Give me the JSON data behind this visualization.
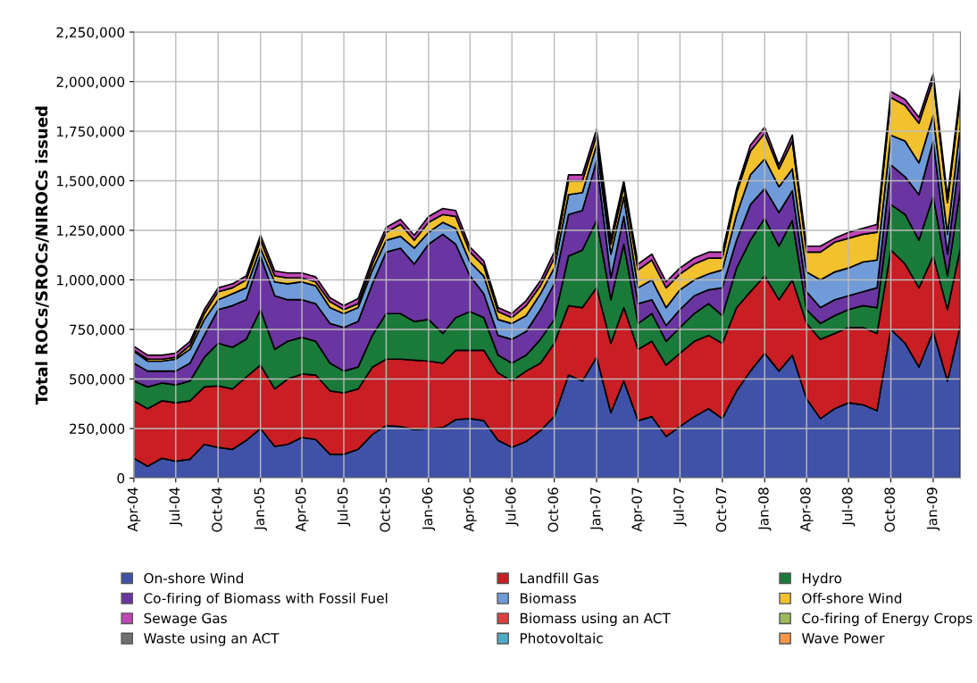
{
  "chart_data": {
    "type": "area",
    "stacked": true,
    "ylabel": "Total ROCs/SROCs/NIROCs issued",
    "x": [
      "2004-04",
      "2004-05",
      "2004-06",
      "2004-07",
      "2004-08",
      "2004-09",
      "2004-10",
      "2004-11",
      "2004-12",
      "2005-01",
      "2005-02",
      "2005-03",
      "2005-04",
      "2005-05",
      "2005-06",
      "2005-07",
      "2005-08",
      "2005-09",
      "2005-10",
      "2005-11",
      "2005-12",
      "2006-01",
      "2006-02",
      "2006-03",
      "2006-04",
      "2006-05",
      "2006-06",
      "2006-07",
      "2006-08",
      "2006-09",
      "2006-10",
      "2006-11",
      "2006-12",
      "2007-01",
      "2007-02",
      "2007-03",
      "2007-04",
      "2007-05",
      "2007-06",
      "2007-07",
      "2007-08",
      "2007-09",
      "2007-10",
      "2007-11",
      "2007-12",
      "2008-01",
      "2008-02",
      "2008-03",
      "2008-04",
      "2008-05",
      "2008-06",
      "2008-07",
      "2008-08",
      "2008-09",
      "2008-10",
      "2008-11",
      "2008-12",
      "2009-01",
      "2009-02",
      "2009-03"
    ],
    "xlim": [
      "2004-04",
      "2009-03"
    ],
    "xticks": [
      {
        "value": "2004-04",
        "label": "Apr-04"
      },
      {
        "value": "2004-07",
        "label": "Jul-04"
      },
      {
        "value": "2004-10",
        "label": "Oct-04"
      },
      {
        "value": "2005-01",
        "label": "Jan-05"
      },
      {
        "value": "2005-04",
        "label": "Apr-05"
      },
      {
        "value": "2005-07",
        "label": "Jul-05"
      },
      {
        "value": "2005-10",
        "label": "Oct-05"
      },
      {
        "value": "2006-01",
        "label": "Jan-06"
      },
      {
        "value": "2006-04",
        "label": "Apr-06"
      },
      {
        "value": "2006-07",
        "label": "Jul-06"
      },
      {
        "value": "2006-10",
        "label": "Oct-06"
      },
      {
        "value": "2007-01",
        "label": "Jan-07"
      },
      {
        "value": "2007-04",
        "label": "Apr-07"
      },
      {
        "value": "2007-07",
        "label": "Jul-07"
      },
      {
        "value": "2007-10",
        "label": "Oct-07"
      },
      {
        "value": "2008-01",
        "label": "Jan-08"
      },
      {
        "value": "2008-04",
        "label": "Apr-08"
      },
      {
        "value": "2008-07",
        "label": "Jul-08"
      },
      {
        "value": "2008-10",
        "label": "Oct-08"
      },
      {
        "value": "2009-01",
        "label": "Jan-09"
      }
    ],
    "ylim": [
      0,
      2250000
    ],
    "yticks": [
      0,
      {
        "value": 250000,
        "label": "250,000"
      },
      {
        "value": 500000,
        "label": "500,000"
      },
      {
        "value": 750000,
        "label": "750,000"
      },
      {
        "value": 1000000,
        "label": "1,000,000"
      },
      {
        "value": 1250000,
        "label": "1,250,000"
      },
      {
        "value": 1500000,
        "label": "1,500,000"
      },
      {
        "value": 1750000,
        "label": "1,750,000"
      },
      {
        "value": 2000000,
        "label": "2,000,000"
      },
      {
        "value": 2250000,
        "label": "2,250,000"
      }
    ],
    "grid": true,
    "legend": "bottom",
    "series": [
      {
        "name": "On-shore Wind",
        "color": "#4052a8",
        "values": [
          100000,
          60000,
          100000,
          85000,
          95000,
          170000,
          155000,
          145000,
          190000,
          250000,
          160000,
          170000,
          205000,
          195000,
          120000,
          120000,
          145000,
          220000,
          265000,
          260000,
          245000,
          250000,
          255000,
          295000,
          300000,
          290000,
          190000,
          155000,
          185000,
          240000,
          310000,
          520000,
          490000,
          610000,
          330000,
          490000,
          290000,
          310000,
          210000,
          260000,
          310000,
          350000,
          300000,
          440000,
          540000,
          630000,
          540000,
          620000,
          400000,
          300000,
          350000,
          380000,
          370000,
          340000,
          750000,
          680000,
          560000,
          740000,
          490000,
          770000
        ]
      },
      {
        "name": "Landfill Gas",
        "color": "#c81e24",
        "values": [
          290000,
          290000,
          290000,
          295000,
          295000,
          290000,
          310000,
          305000,
          320000,
          320000,
          290000,
          330000,
          320000,
          325000,
          320000,
          310000,
          305000,
          340000,
          335000,
          340000,
          350000,
          340000,
          325000,
          350000,
          345000,
          355000,
          340000,
          335000,
          355000,
          340000,
          370000,
          350000,
          370000,
          350000,
          350000,
          370000,
          360000,
          380000,
          360000,
          370000,
          380000,
          370000,
          380000,
          420000,
          400000,
          390000,
          360000,
          380000,
          380000,
          400000,
          380000,
          380000,
          390000,
          390000,
          400000,
          400000,
          400000,
          380000,
          360000,
          390000
        ]
      },
      {
        "name": "Hydro",
        "color": "#1a7a3a",
        "values": [
          100000,
          110000,
          90000,
          90000,
          100000,
          150000,
          215000,
          210000,
          190000,
          280000,
          200000,
          190000,
          185000,
          170000,
          140000,
          110000,
          110000,
          160000,
          230000,
          230000,
          195000,
          210000,
          150000,
          165000,
          195000,
          165000,
          90000,
          90000,
          80000,
          120000,
          120000,
          250000,
          290000,
          340000,
          220000,
          320000,
          130000,
          140000,
          120000,
          130000,
          140000,
          160000,
          140000,
          200000,
          260000,
          290000,
          270000,
          300000,
          70000,
          80000,
          90000,
          90000,
          110000,
          130000,
          230000,
          250000,
          240000,
          300000,
          170000,
          300000
        ]
      },
      {
        "name": "Co-firing of Biomass with Fossil Fuel",
        "color": "#6a35a0",
        "values": [
          90000,
          80000,
          60000,
          70000,
          90000,
          110000,
          170000,
          210000,
          200000,
          270000,
          270000,
          210000,
          190000,
          190000,
          200000,
          220000,
          230000,
          260000,
          310000,
          330000,
          290000,
          380000,
          500000,
          370000,
          180000,
          120000,
          100000,
          120000,
          120000,
          150000,
          180000,
          210000,
          200000,
          300000,
          110000,
          140000,
          100000,
          70000,
          80000,
          90000,
          90000,
          70000,
          140000,
          140000,
          180000,
          150000,
          170000,
          150000,
          90000,
          80000,
          80000,
          70000,
          70000,
          100000,
          200000,
          190000,
          230000,
          280000,
          110000,
          190000
        ]
      },
      {
        "name": "Biomass",
        "color": "#6f9bd8",
        "values": [
          60000,
          50000,
          50000,
          60000,
          70000,
          80000,
          50000,
          60000,
          60000,
          40000,
          70000,
          80000,
          90000,
          90000,
          80000,
          70000,
          70000,
          70000,
          60000,
          60000,
          80000,
          60000,
          60000,
          80000,
          70000,
          90000,
          80000,
          80000,
          80000,
          80000,
          80000,
          100000,
          90000,
          80000,
          120000,
          100000,
          80000,
          100000,
          90000,
          100000,
          80000,
          80000,
          90000,
          130000,
          150000,
          150000,
          130000,
          110000,
          100000,
          140000,
          140000,
          140000,
          150000,
          140000,
          150000,
          180000,
          160000,
          130000,
          100000,
          130000
        ]
      },
      {
        "name": "Off-shore Wind",
        "color": "#f2c12e",
        "values": [
          5000,
          10000,
          10000,
          10000,
          20000,
          30000,
          40000,
          30000,
          40000,
          40000,
          30000,
          30000,
          20000,
          20000,
          30000,
          20000,
          20000,
          30000,
          40000,
          60000,
          40000,
          50000,
          40000,
          60000,
          50000,
          50000,
          40000,
          30000,
          50000,
          40000,
          50000,
          70000,
          60000,
          50000,
          50000,
          50000,
          90000,
          100000,
          100000,
          80000,
          80000,
          80000,
          60000,
          110000,
          120000,
          130000,
          90000,
          140000,
          100000,
          140000,
          150000,
          150000,
          140000,
          140000,
          190000,
          180000,
          200000,
          180000,
          160000,
          150000
        ]
      },
      {
        "name": "Sewage Gas",
        "color": "#c046b5",
        "values": [
          20000,
          20000,
          20000,
          20000,
          20000,
          20000,
          20000,
          20000,
          20000,
          25000,
          25000,
          25000,
          25000,
          25000,
          20000,
          20000,
          25000,
          25000,
          25000,
          25000,
          25000,
          30000,
          30000,
          30000,
          25000,
          25000,
          20000,
          20000,
          25000,
          25000,
          30000,
          30000,
          30000,
          30000,
          30000,
          30000,
          30000,
          30000,
          30000,
          30000,
          30000,
          30000,
          30000,
          20000,
          30000,
          30000,
          20000,
          30000,
          30000,
          30000,
          20000,
          30000,
          30000,
          40000,
          30000,
          30000,
          30000,
          30000,
          30000,
          30000
        ]
      },
      {
        "name": "Biomass using an ACT",
        "color": "#e04040",
        "values": [
          null,
          null,
          null,
          null,
          null,
          null,
          null,
          null,
          null,
          null,
          null,
          null,
          null,
          null,
          null,
          null,
          null,
          null,
          null,
          null,
          null,
          null,
          null,
          null,
          null,
          null,
          null,
          null,
          null,
          null,
          null,
          null,
          null,
          null,
          null,
          null,
          null,
          null,
          null,
          null,
          null,
          null,
          null,
          null,
          null,
          null,
          null,
          null,
          null,
          null,
          null,
          null,
          null,
          null,
          null,
          null,
          null,
          null,
          null,
          null
        ]
      },
      {
        "name": "Co-firing of Energy Crops",
        "color": "#9bbb59",
        "values": [
          null,
          null,
          null,
          null,
          null,
          null,
          null,
          null,
          null,
          null,
          null,
          null,
          null,
          null,
          null,
          null,
          null,
          null,
          null,
          null,
          null,
          null,
          null,
          null,
          null,
          null,
          null,
          null,
          null,
          null,
          null,
          null,
          null,
          null,
          null,
          null,
          null,
          null,
          null,
          null,
          null,
          null,
          null,
          null,
          null,
          null,
          null,
          null,
          null,
          null,
          null,
          null,
          null,
          null,
          null,
          null,
          null,
          null,
          null,
          null
        ]
      },
      {
        "name": "Waste using an ACT",
        "color": "#707070",
        "values": [
          null,
          null,
          null,
          null,
          null,
          null,
          null,
          null,
          null,
          null,
          null,
          null,
          null,
          null,
          null,
          null,
          null,
          null,
          null,
          null,
          null,
          null,
          null,
          null,
          null,
          null,
          null,
          null,
          null,
          null,
          null,
          null,
          null,
          null,
          null,
          null,
          null,
          null,
          null,
          null,
          null,
          null,
          null,
          null,
          null,
          null,
          null,
          null,
          null,
          null,
          null,
          null,
          null,
          null,
          null,
          null,
          null,
          null,
          null,
          null
        ]
      },
      {
        "name": "Photovoltaic",
        "color": "#4bacc6",
        "values": [
          null,
          null,
          null,
          null,
          null,
          null,
          null,
          null,
          null,
          null,
          null,
          null,
          null,
          null,
          null,
          null,
          null,
          null,
          null,
          null,
          null,
          null,
          null,
          null,
          null,
          null,
          null,
          null,
          null,
          null,
          null,
          null,
          null,
          null,
          null,
          null,
          null,
          null,
          null,
          null,
          null,
          null,
          null,
          null,
          null,
          null,
          null,
          null,
          null,
          null,
          null,
          null,
          null,
          null,
          null,
          null,
          null,
          null,
          null,
          null
        ]
      },
      {
        "name": "Wave Power",
        "color": "#f79646",
        "values": [
          null,
          null,
          null,
          null,
          null,
          null,
          null,
          null,
          null,
          null,
          null,
          null,
          null,
          null,
          null,
          null,
          null,
          null,
          null,
          null,
          null,
          null,
          null,
          null,
          null,
          null,
          null,
          null,
          null,
          null,
          null,
          null,
          null,
          null,
          null,
          null,
          null,
          null,
          null,
          null,
          null,
          null,
          null,
          null,
          null,
          null,
          null,
          null,
          null,
          null,
          null,
          null,
          null,
          null,
          null,
          null,
          null,
          null,
          null,
          null
        ]
      }
    ]
  }
}
